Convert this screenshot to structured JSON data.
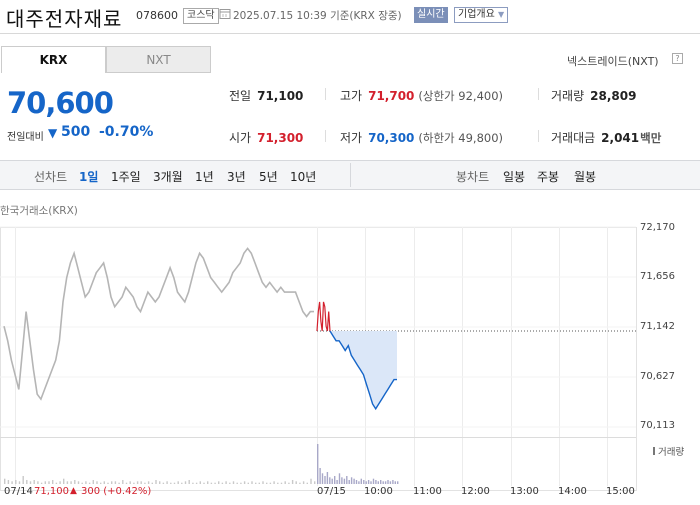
{
  "header": {
    "name": "대주전자재료",
    "code": "078600",
    "market": "코스닥",
    "timestamp": "2025.07.15 10:39",
    "basis": "기준(KRX 장중)",
    "realtime": "실시간",
    "corp_info": "기업개요"
  },
  "tabs": {
    "krx": "KRX",
    "nxt": "NXT"
  },
  "nxt_link": "넥스트레이드(NXT)",
  "help": "?",
  "quote": {
    "price": "70,600",
    "change_label": "전일대비",
    "change_arrow": "▼",
    "change": "500",
    "change_pct": "-0.70%"
  },
  "stats": {
    "prev_close": {
      "label": "전일",
      "value": "71,100"
    },
    "high": {
      "label": "고가",
      "value": "71,700",
      "sub": "(상한가 92,400)"
    },
    "volume": {
      "label": "거래량",
      "value": "28,809"
    },
    "open": {
      "label": "시가",
      "value": "71,300"
    },
    "low": {
      "label": "저가",
      "value": "70,300",
      "sub": "(하한가 49,800)"
    },
    "amount": {
      "label": "거래대금",
      "value": "2,041",
      "unit": "백만"
    }
  },
  "periods": {
    "line_label": "선차트",
    "line_items": [
      "1일",
      "1주일",
      "3개월",
      "1년",
      "3년",
      "5년",
      "10년"
    ],
    "active": "1일",
    "candle_label": "봉차트",
    "candle_items": [
      "일봉",
      "주봉",
      "월봉"
    ]
  },
  "source_label": "한국거래소(KRX)",
  "colors": {
    "up": "#d3202d",
    "down": "#1565c8",
    "accent": "#1565c8"
  },
  "chart_data": {
    "type": "line",
    "y_ticks": [
      "72,170",
      "71,656",
      "71,142",
      "70,627",
      "70,113"
    ],
    "ylim": [
      70113,
      72170
    ],
    "x_ticks": [
      "07/15",
      "10:00",
      "11:00",
      "12:00",
      "13:00",
      "14:00",
      "15:00"
    ],
    "reference_price": 71100,
    "prev_day": {
      "date": "07/14",
      "values": [
        71150,
        71000,
        70800,
        70650,
        70500,
        70900,
        71300,
        71000,
        70700,
        70450,
        70400,
        70500,
        70600,
        70700,
        70800,
        71000,
        71400,
        71650,
        71800,
        71900,
        71750,
        71600,
        71450,
        71500,
        71600,
        71700,
        71750,
        71800,
        71650,
        71450,
        71350,
        71400,
        71450,
        71550,
        71500,
        71450,
        71350,
        71300,
        71400,
        71500,
        71450,
        71400,
        71450,
        71550,
        71650,
        71750,
        71650,
        71500,
        71450,
        71400,
        71500,
        71650,
        71800,
        71900,
        71850,
        71750,
        71650,
        71600,
        71550,
        71500,
        71550,
        71600,
        71700,
        71750,
        71800,
        71900,
        71950,
        71900,
        71800,
        71700,
        71600,
        71550,
        71600,
        71550,
        71500,
        71550,
        71500,
        71500,
        71500,
        71500,
        71400,
        71300,
        71250,
        71300,
        71300
      ]
    },
    "today": {
      "up_values": [
        71100,
        71300,
        71400,
        71200,
        71100,
        71400,
        71350,
        71150,
        71100,
        71300,
        71100
      ],
      "down_values": [
        71100,
        71050,
        71000,
        71000,
        70950,
        70900,
        70950,
        70850,
        70800,
        70750,
        70700,
        70650,
        70550,
        70450,
        70350,
        70300,
        70350,
        70400,
        70450,
        70500,
        70550,
        70600,
        70600
      ]
    },
    "volume_label": "거래량",
    "volume": {
      "prev_day": [
        4,
        3,
        2,
        3,
        2,
        6,
        3,
        2,
        3,
        2,
        1,
        2,
        2,
        3,
        1,
        2,
        4,
        2,
        2,
        3,
        2,
        1,
        2,
        1,
        3,
        2,
        1,
        2,
        1,
        2,
        2,
        1,
        3,
        1,
        2,
        1,
        2,
        2,
        1,
        2,
        1,
        3,
        2,
        1,
        2,
        1,
        1,
        2,
        1,
        2,
        3,
        1,
        1,
        2,
        1,
        2,
        1,
        1,
        2,
        1,
        2,
        1,
        2,
        1,
        1,
        2,
        1,
        2,
        1,
        1,
        2,
        1,
        1,
        2,
        1,
        1,
        2,
        1,
        3,
        2,
        1,
        2,
        1,
        4,
        2
      ],
      "today": [
        30,
        12,
        8,
        6,
        9,
        5,
        4,
        6,
        3,
        8,
        5,
        4,
        6,
        3,
        5,
        4,
        3,
        2,
        4,
        3,
        2,
        3,
        2,
        4,
        3,
        2,
        3,
        2,
        2,
        3,
        2,
        3,
        2,
        2
      ]
    },
    "footer": {
      "date": "07/14",
      "prev_close": "71,100",
      "arrow": "▲",
      "change": "300",
      "change_pct": "(+0.42%)"
    }
  }
}
